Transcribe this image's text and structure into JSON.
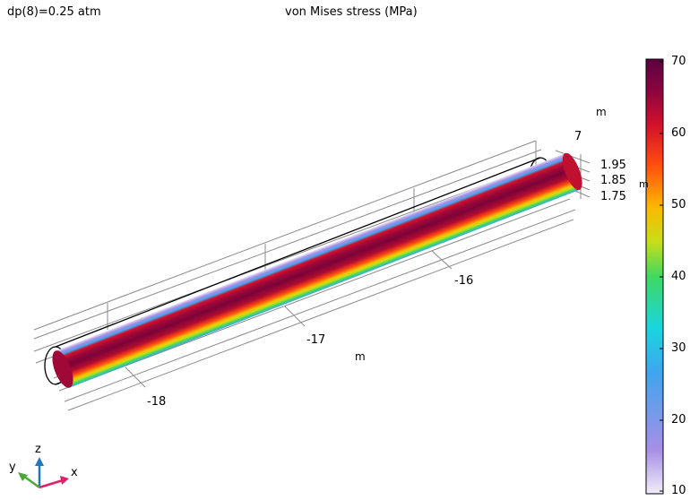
{
  "header": {
    "parameter_label": "dp(8)=0.25 atm",
    "plot_title": "von Mises stress (MPa)"
  },
  "axes": {
    "x_ticks": [
      "-18",
      "-17",
      "-16"
    ],
    "x_unit": "m",
    "y_tick": "7",
    "y_unit": "m",
    "z_ticks": [
      "1.95",
      "1.85",
      "1.75"
    ],
    "z_unit": "m"
  },
  "colorbar": {
    "min": 10,
    "max": 70,
    "ticks": [
      "70",
      "60",
      "50",
      "40",
      "30",
      "20",
      "10"
    ],
    "colors": [
      "#f2eef8",
      "#a78fe6",
      "#3fa5ee",
      "#18d6e0",
      "#40d860",
      "#c8de18",
      "#fbb800",
      "#ff4a10",
      "#d2102c",
      "#8a0440",
      "#5a0340"
    ]
  },
  "triad": {
    "x": "x",
    "y": "y",
    "z": "z"
  }
}
